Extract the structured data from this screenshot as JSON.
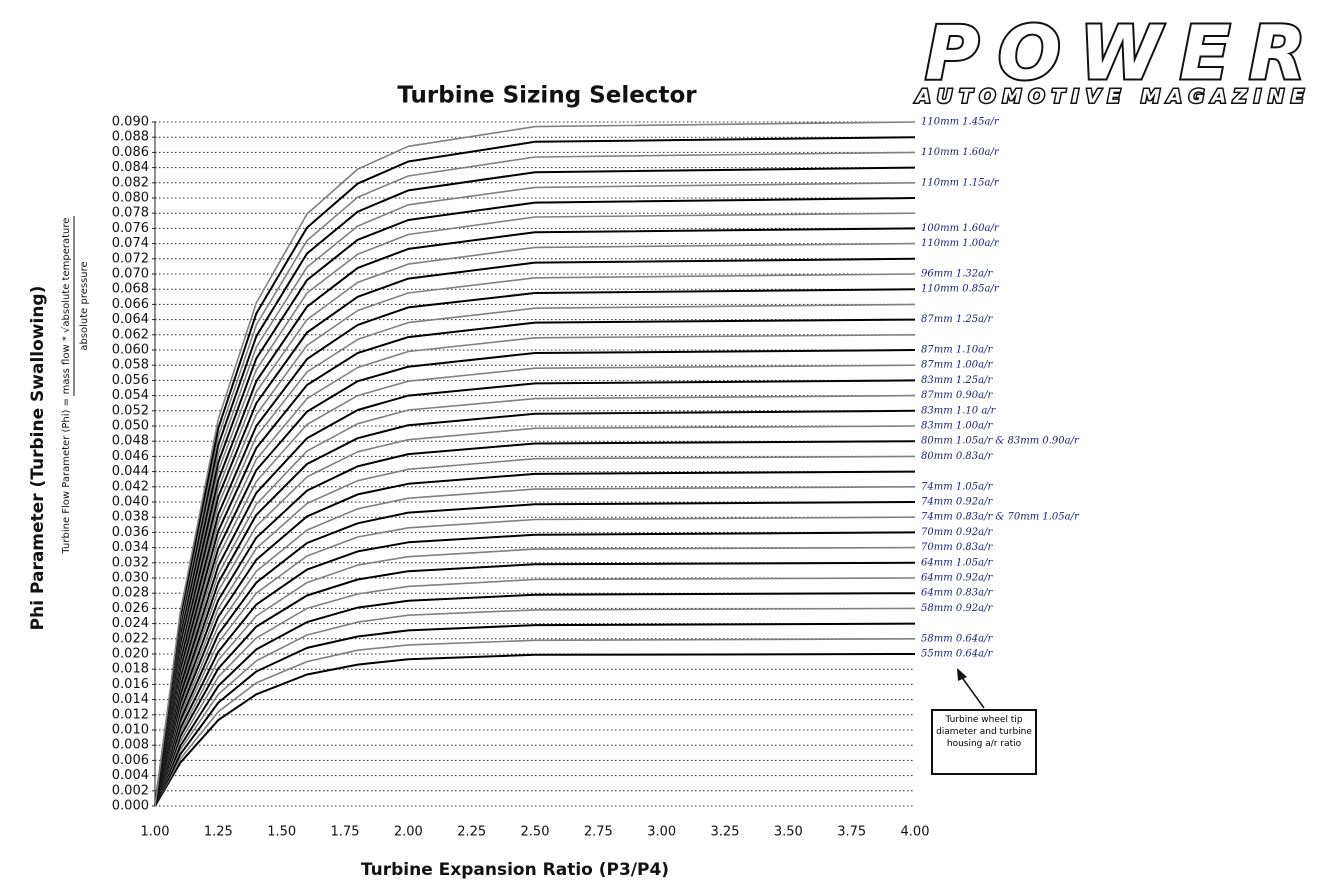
{
  "brand": {
    "name": "POWER",
    "tagline": "AUTOMOTIVE MAGAZINE"
  },
  "chart_data": {
    "type": "line",
    "title": "Turbine Sizing Selector",
    "x_label": "Turbine Expansion Ratio (P3/P4)",
    "y_label": "Phi Parameter (Turbine Swallowing)",
    "y_sublabel": {
      "prefix": "Turbine Flow Parameter (Phi) =",
      "numerator": "mass flow * √absolute temperature",
      "denominator": "absolute pressure"
    },
    "annotation": "Turbine wheel tip diameter and turbine housing a/r ratio",
    "xlim": [
      1,
      4
    ],
    "ylim": [
      0,
      0.09
    ],
    "grid": true,
    "xticks": [
      {
        "value": 1,
        "label": "1.00"
      },
      {
        "value": 1.25,
        "label": "1.25"
      },
      {
        "value": 1.5,
        "label": "1.50"
      },
      {
        "value": 1.75,
        "label": "1.75"
      },
      {
        "value": 2,
        "label": "2.00"
      },
      {
        "value": 2.25,
        "label": "2.25"
      },
      {
        "value": 2.5,
        "label": "2.50"
      },
      {
        "value": 2.75,
        "label": "2.75"
      },
      {
        "value": 3,
        "label": "3.00"
      },
      {
        "value": 3.25,
        "label": "3.25"
      },
      {
        "value": 3.5,
        "label": "3.50"
      },
      {
        "value": 3.75,
        "label": "3.75"
      },
      {
        "value": 4,
        "label": "4.00"
      }
    ],
    "yticks": [
      {
        "value": 0,
        "label": "0.000"
      },
      {
        "value": 0.002,
        "label": "0.002"
      },
      {
        "value": 0.004,
        "label": "0.004"
      },
      {
        "value": 0.006,
        "label": "0.006"
      },
      {
        "value": 0.008,
        "label": "0.008"
      },
      {
        "value": 0.01,
        "label": "0.010"
      },
      {
        "value": 0.012,
        "label": "0.012"
      },
      {
        "value": 0.014,
        "label": "0.014"
      },
      {
        "value": 0.016,
        "label": "0.016"
      },
      {
        "value": 0.018,
        "label": "0.018"
      },
      {
        "value": 0.02,
        "label": "0.020"
      },
      {
        "value": 0.022,
        "label": "0.022"
      },
      {
        "value": 0.024,
        "label": "0.024"
      },
      {
        "value": 0.026,
        "label": "0.026"
      },
      {
        "value": 0.028,
        "label": "0.028"
      },
      {
        "value": 0.03,
        "label": "0.030"
      },
      {
        "value": 0.032,
        "label": "0.032"
      },
      {
        "value": 0.034,
        "label": "0.034"
      },
      {
        "value": 0.036,
        "label": "0.036"
      },
      {
        "value": 0.038,
        "label": "0.038"
      },
      {
        "value": 0.04,
        "label": "0.040"
      },
      {
        "value": 0.042,
        "label": "0.042"
      },
      {
        "value": 0.044,
        "label": "0.044"
      },
      {
        "value": 0.046,
        "label": "0.046"
      },
      {
        "value": 0.048,
        "label": "0.048"
      },
      {
        "value": 0.05,
        "label": "0.050"
      },
      {
        "value": 0.052,
        "label": "0.052"
      },
      {
        "value": 0.054,
        "label": "0.054"
      },
      {
        "value": 0.056,
        "label": "0.056"
      },
      {
        "value": 0.058,
        "label": "0.058"
      },
      {
        "value": 0.06,
        "label": "0.060"
      },
      {
        "value": 0.062,
        "label": "0.062"
      },
      {
        "value": 0.064,
        "label": "0.064"
      },
      {
        "value": 0.066,
        "label": "0.066"
      },
      {
        "value": 0.068,
        "label": "0.068"
      },
      {
        "value": 0.07,
        "label": "0.070"
      },
      {
        "value": 0.072,
        "label": "0.072"
      },
      {
        "value": 0.074,
        "label": "0.074"
      },
      {
        "value": 0.076,
        "label": "0.076"
      },
      {
        "value": 0.078,
        "label": "0.078"
      },
      {
        "value": 0.08,
        "label": "0.080"
      },
      {
        "value": 0.082,
        "label": "0.082"
      },
      {
        "value": 0.084,
        "label": "0.084"
      },
      {
        "value": 0.086,
        "label": "0.086"
      },
      {
        "value": 0.088,
        "label": "0.088"
      },
      {
        "value": 0.09,
        "label": "0.090"
      }
    ],
    "x": [
      1,
      1.1,
      1.25,
      1.4,
      1.6,
      1.8,
      2,
      2.5,
      4
    ],
    "series": [
      {
        "name": "55mm 0.64a/r",
        "color": "#000000",
        "values": [
          0,
          0.0057,
          0.0113,
          0.0147,
          0.0173,
          0.0186,
          0.0193,
          0.0199,
          0.02
        ]
      },
      {
        "name": "58mm 0.64a/r",
        "color": "#808080",
        "values": [
          0,
          0.0062,
          0.0124,
          0.0162,
          0.019,
          0.0205,
          0.0212,
          0.0218,
          0.022
        ]
      },
      {
        "color": "#000000",
        "values": [
          0,
          0.0068,
          0.0136,
          0.0177,
          0.0208,
          0.0223,
          0.0231,
          0.0238,
          0.024
        ]
      },
      {
        "name": "58mm 0.92a/r",
        "color": "#808080",
        "values": [
          0,
          0.0074,
          0.0147,
          0.0191,
          0.0225,
          0.0242,
          0.0251,
          0.0258,
          0.026
        ]
      },
      {
        "name": "64mm 0.83a/r",
        "color": "#000000",
        "values": [
          0,
          0.0079,
          0.0158,
          0.0206,
          0.0242,
          0.0261,
          0.027,
          0.0278,
          0.028
        ]
      },
      {
        "name": "64mm 0.92a/r",
        "color": "#808080",
        "values": [
          0,
          0.0085,
          0.017,
          0.0221,
          0.026,
          0.0279,
          0.0289,
          0.0298,
          0.03
        ]
      },
      {
        "name": "64mm 1.05a/r",
        "color": "#000000",
        "values": [
          0,
          0.0091,
          0.0181,
          0.0236,
          0.0277,
          0.0298,
          0.0309,
          0.0318,
          0.032
        ]
      },
      {
        "name": "70mm 0.83a/r",
        "color": "#808080",
        "values": [
          0,
          0.0096,
          0.0192,
          0.025,
          0.0294,
          0.0317,
          0.0328,
          0.0338,
          0.034
        ]
      },
      {
        "name": "70mm 0.92a/r",
        "color": "#000000",
        "values": [
          0,
          0.0102,
          0.0203,
          0.0265,
          0.0311,
          0.0335,
          0.0347,
          0.0357,
          0.036
        ]
      },
      {
        "name": "74mm 0.83a/r & 70mm 1.05a/r",
        "color": "#808080",
        "values": [
          0,
          0.0108,
          0.0215,
          0.028,
          0.0329,
          0.0354,
          0.0366,
          0.0377,
          0.038
        ]
      },
      {
        "name": "74mm 0.92a/r",
        "color": "#000000",
        "values": [
          0,
          0.0113,
          0.0226,
          0.0294,
          0.0346,
          0.0372,
          0.0386,
          0.0397,
          0.04
        ]
      },
      {
        "name": "74mm 1.05a/r",
        "color": "#808080",
        "values": [
          0,
          0.0119,
          0.0237,
          0.0309,
          0.0363,
          0.0391,
          0.0405,
          0.0417,
          0.042
        ]
      },
      {
        "color": "#000000",
        "values": [
          0,
          0.0125,
          0.0249,
          0.0324,
          0.0381,
          0.041,
          0.0424,
          0.0437,
          0.044
        ]
      },
      {
        "name": "80mm 0.83a/r",
        "color": "#808080",
        "values": [
          0,
          0.013,
          0.026,
          0.0339,
          0.0398,
          0.0428,
          0.0443,
          0.0457,
          0.046
        ]
      },
      {
        "name": "80mm 1.05a/r & 83mm 0.90a/r",
        "color": "#000000",
        "values": [
          0,
          0.0136,
          0.0271,
          0.0353,
          0.0415,
          0.0447,
          0.0463,
          0.0477,
          0.048
        ]
      },
      {
        "name": "83mm 1.00a/r",
        "color": "#808080",
        "values": [
          0,
          0.0142,
          0.0283,
          0.0368,
          0.0433,
          0.0466,
          0.0482,
          0.0497,
          0.05
        ]
      },
      {
        "name": "83mm 1.10 a/r",
        "color": "#000000",
        "values": [
          0,
          0.0147,
          0.0294,
          0.0383,
          0.045,
          0.0484,
          0.0501,
          0.0516,
          0.052
        ]
      },
      {
        "name": "87mm 0.90a/r",
        "color": "#808080",
        "values": [
          0,
          0.0153,
          0.0305,
          0.0397,
          0.0467,
          0.0503,
          0.0521,
          0.0536,
          0.054
        ]
      },
      {
        "name": "83mm 1.25a/r",
        "color": "#000000",
        "values": [
          0,
          0.0158,
          0.0316,
          0.0412,
          0.0484,
          0.0521,
          0.054,
          0.0556,
          0.056
        ]
      },
      {
        "name": "87mm 1.00a/r",
        "color": "#808080",
        "values": [
          0,
          0.0164,
          0.0328,
          0.0427,
          0.0502,
          0.054,
          0.0559,
          0.0576,
          0.058
        ]
      },
      {
        "name": "87mm 1.10a/r",
        "color": "#000000",
        "values": [
          0,
          0.017,
          0.0339,
          0.0442,
          0.0519,
          0.0559,
          0.0578,
          0.0596,
          0.06
        ]
      },
      {
        "color": "#808080",
        "values": [
          0,
          0.0175,
          0.035,
          0.0456,
          0.0536,
          0.0577,
          0.0598,
          0.0616,
          0.062
        ]
      },
      {
        "name": "87mm 1.25a/r",
        "color": "#000000",
        "values": [
          0,
          0.0181,
          0.0362,
          0.0471,
          0.0554,
          0.0596,
          0.0617,
          0.0636,
          0.064
        ]
      },
      {
        "color": "#808080",
        "values": [
          0,
          0.0187,
          0.0373,
          0.0486,
          0.0571,
          0.0614,
          0.0636,
          0.0655,
          0.066
        ]
      },
      {
        "name": "110mm 0.85a/r",
        "color": "#000000",
        "values": [
          0,
          0.0192,
          0.0384,
          0.05,
          0.0588,
          0.0633,
          0.0656,
          0.0675,
          0.068
        ]
      },
      {
        "name": "96mm 1.32a/r",
        "color": "#808080",
        "values": [
          0,
          0.0198,
          0.0396,
          0.0515,
          0.0606,
          0.0652,
          0.0675,
          0.0695,
          0.07
        ]
      },
      {
        "color": "#000000",
        "values": [
          0,
          0.0204,
          0.0407,
          0.053,
          0.0623,
          0.067,
          0.0694,
          0.0715,
          0.072
        ]
      },
      {
        "name": "110mm 1.00a/r",
        "color": "#808080",
        "values": [
          0,
          0.0209,
          0.0418,
          0.0545,
          0.064,
          0.0689,
          0.0713,
          0.0735,
          0.074
        ]
      },
      {
        "name": "100mm 1.60a/r",
        "color": "#000000",
        "values": [
          0,
          0.0215,
          0.0429,
          0.0559,
          0.0657,
          0.0708,
          0.0733,
          0.0755,
          0.076
        ]
      },
      {
        "color": "#808080",
        "values": [
          0,
          0.0221,
          0.0441,
          0.0574,
          0.0675,
          0.0726,
          0.0752,
          0.0775,
          0.078
        ]
      },
      {
        "color": "#000000",
        "values": [
          0,
          0.0226,
          0.0452,
          0.0589,
          0.0692,
          0.0745,
          0.0771,
          0.0794,
          0.08
        ]
      },
      {
        "name": "110mm 1.15a/r",
        "color": "#808080",
        "values": [
          0,
          0.0232,
          0.0463,
          0.0604,
          0.0709,
          0.0763,
          0.0791,
          0.0814,
          0.082
        ]
      },
      {
        "color": "#000000",
        "values": [
          0,
          0.0238,
          0.0475,
          0.0618,
          0.0727,
          0.0782,
          0.081,
          0.0834,
          0.084
        ]
      },
      {
        "name": "110mm 1.60a/r",
        "color": "#808080",
        "values": [
          0,
          0.0243,
          0.0486,
          0.0633,
          0.0744,
          0.0801,
          0.0829,
          0.0854,
          0.086
        ]
      },
      {
        "color": "#000000",
        "values": [
          0,
          0.0249,
          0.0497,
          0.0648,
          0.0761,
          0.0819,
          0.0848,
          0.0874,
          0.088
        ]
      },
      {
        "name": "110mm 1.45a/r",
        "color": "#808080",
        "values": [
          0,
          0.0255,
          0.0509,
          0.0662,
          0.0779,
          0.0838,
          0.0868,
          0.0894,
          0.09
        ]
      }
    ]
  }
}
